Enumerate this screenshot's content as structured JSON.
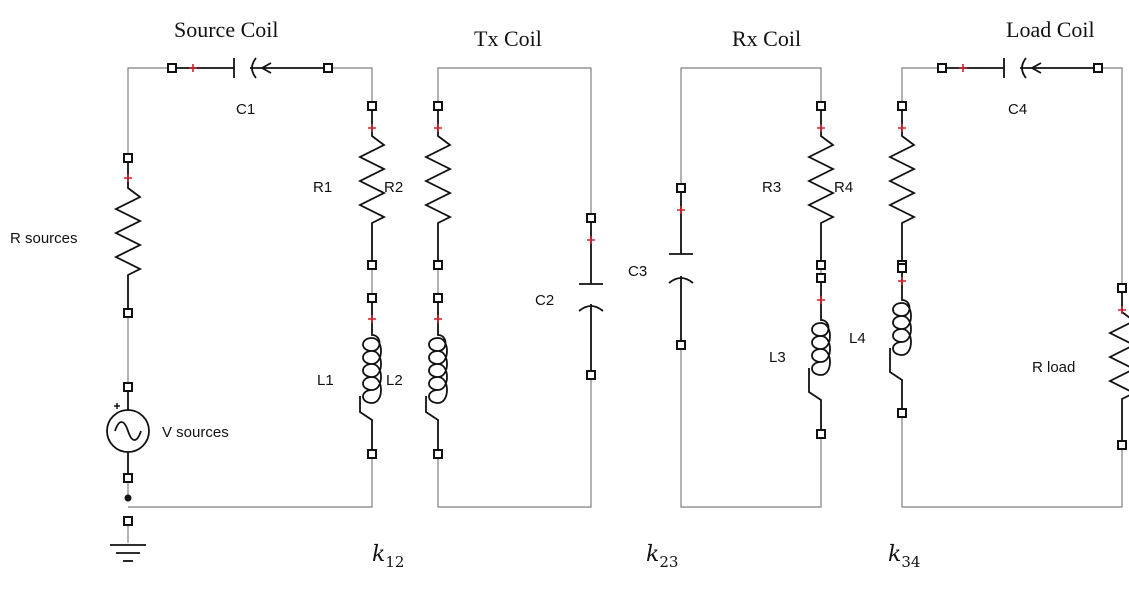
{
  "titles": {
    "source": "Source Coil",
    "tx": "Tx Coil",
    "rx": "Rx Coil",
    "load": "Load Coil"
  },
  "labels": {
    "c1": "C1",
    "c2": "C2",
    "c3": "C3",
    "c4": "C4",
    "r1": "R1",
    "r2": "R2",
    "r3": "R3",
    "r4": "R4",
    "l1": "L1",
    "l2": "L2",
    "l3": "L3",
    "l4": "L4",
    "r_sources": "R sources",
    "v_sources": "V sources",
    "r_load": "R load"
  },
  "coupling": [
    {
      "k": "k",
      "sub": "12"
    },
    {
      "k": "k",
      "sub": "23"
    },
    {
      "k": "k",
      "sub": "34"
    }
  ],
  "colors": {
    "wire": "#7f7f7f",
    "component": "#111111",
    "polarity_mark": "#d0202a"
  }
}
